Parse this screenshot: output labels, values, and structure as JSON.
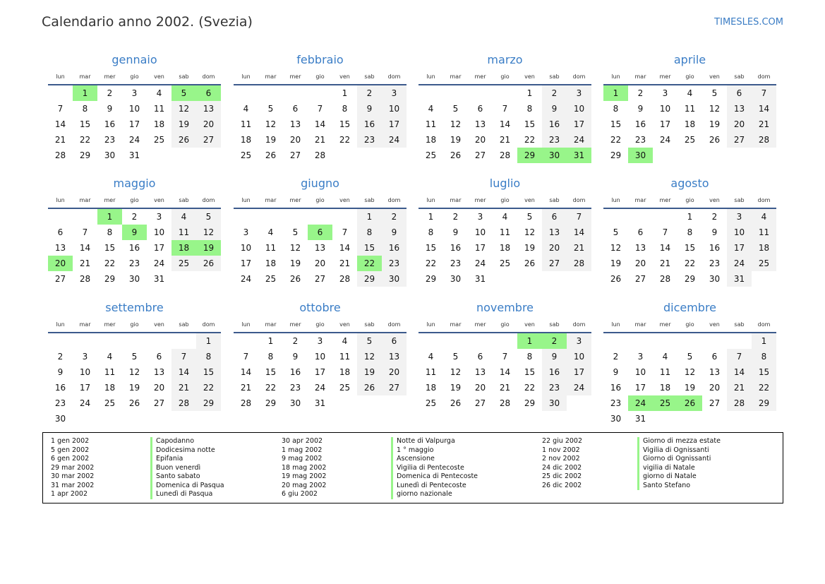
{
  "header": {
    "title": "Calendario anno 2002. (Svezia)",
    "brand": "TIMESLES.COM"
  },
  "weekdays": [
    "lun",
    "mar",
    "mer",
    "gio",
    "ven",
    "sab",
    "dom"
  ],
  "colors": {
    "accent": "#3a7dc6",
    "holiday": "#98f58a",
    "weekend": "#f2f2f2",
    "rule": "#3c5a8c"
  },
  "months": [
    {
      "name": "gennaio",
      "first_weekday": "mar",
      "days": 31,
      "holidays": [
        1,
        5,
        6
      ]
    },
    {
      "name": "febbraio",
      "first_weekday": "ven",
      "days": 28,
      "holidays": []
    },
    {
      "name": "marzo",
      "first_weekday": "ven",
      "days": 31,
      "holidays": [
        29,
        30,
        31
      ]
    },
    {
      "name": "aprile",
      "first_weekday": "lun",
      "days": 30,
      "holidays": [
        1,
        30
      ]
    },
    {
      "name": "maggio",
      "first_weekday": "mer",
      "days": 31,
      "holidays": [
        1,
        9,
        18,
        19,
        20
      ]
    },
    {
      "name": "giugno",
      "first_weekday": "sab",
      "days": 30,
      "holidays": [
        6,
        22
      ]
    },
    {
      "name": "luglio",
      "first_weekday": "lun",
      "days": 31,
      "holidays": []
    },
    {
      "name": "agosto",
      "first_weekday": "gio",
      "days": 31,
      "holidays": []
    },
    {
      "name": "settembre",
      "first_weekday": "dom",
      "days": 30,
      "holidays": []
    },
    {
      "name": "ottobre",
      "first_weekday": "mar",
      "days": 31,
      "holidays": []
    },
    {
      "name": "novembre",
      "first_weekday": "ven",
      "days": 30,
      "holidays": [
        1,
        2
      ]
    },
    {
      "name": "dicembre",
      "first_weekday": "dom",
      "days": 31,
      "holidays": [
        24,
        25,
        26
      ]
    }
  ],
  "holiday_list": [
    {
      "date": "1 gen 2002",
      "name": "Capodanno"
    },
    {
      "date": "5 gen 2002",
      "name": "Dodicesima notte"
    },
    {
      "date": "6 gen 2002",
      "name": "Epifania"
    },
    {
      "date": "29 mar 2002",
      "name": "Buon venerdì"
    },
    {
      "date": "30 mar 2002",
      "name": "Santo sabato"
    },
    {
      "date": "31 mar 2002",
      "name": "Domenica di Pasqua"
    },
    {
      "date": "1 apr 2002",
      "name": "Lunedì di Pasqua"
    },
    {
      "date": "30 apr 2002",
      "name": "Notte di Valpurga"
    },
    {
      "date": "1 mag 2002",
      "name": "1 ° maggio"
    },
    {
      "date": "9 mag 2002",
      "name": "Ascensione"
    },
    {
      "date": "18 mag 2002",
      "name": "Vigilia di Pentecoste"
    },
    {
      "date": "19 mag 2002",
      "name": "Domenica di Pentecoste"
    },
    {
      "date": "20 mag 2002",
      "name": "Lunedì di Pentecoste"
    },
    {
      "date": "6 giu 2002",
      "name": "giorno nazionale"
    },
    {
      "date": "22 giu 2002",
      "name": "Giorno di mezza estate"
    },
    {
      "date": "1 nov 2002",
      "name": "Vigilia di Ognissanti"
    },
    {
      "date": "2 nov 2002",
      "name": "Giorno di Ognissanti"
    },
    {
      "date": "24 dic 2002",
      "name": "vigilia di Natale"
    },
    {
      "date": "25 dic 2002",
      "name": "giorno di Natale"
    },
    {
      "date": "26 dic 2002",
      "name": "Santo Stefano"
    }
  ]
}
